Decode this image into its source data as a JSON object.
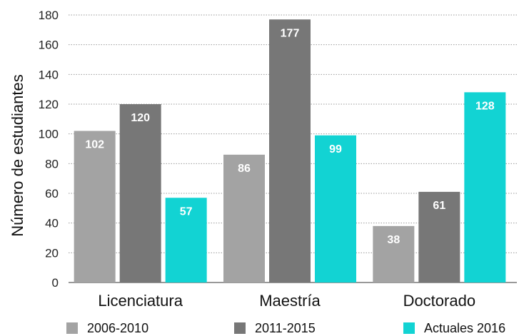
{
  "chart_data": {
    "type": "bar",
    "title": "",
    "xlabel": "",
    "ylabel": "Número de estudiantes",
    "categories": [
      "Licenciatura",
      "Maestría",
      "Doctorado"
    ],
    "series": [
      {
        "name": "2006-2010",
        "values": [
          102,
          86,
          38
        ],
        "color": "#a3a3a3"
      },
      {
        "name": "2011-2015",
        "values": [
          120,
          177,
          61
        ],
        "color": "#777777"
      },
      {
        "name": "Actuales 2016",
        "values": [
          57,
          99,
          128
        ],
        "color": "#12d3d3"
      }
    ],
    "ylim": [
      0,
      180
    ],
    "yticks": [
      0,
      20,
      40,
      60,
      80,
      100,
      120,
      140,
      160,
      180
    ],
    "grid": true,
    "legend_position": "bottom",
    "data_labels": true
  }
}
